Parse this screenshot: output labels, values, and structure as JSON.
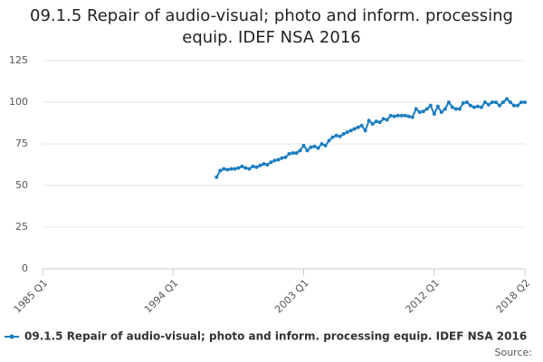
{
  "chart_data": {
    "type": "line",
    "title": "09.1.5 Repair of audio-visual; photo and inform. processing equip. IDEF NSA 2016",
    "categories": [
      "1985 Q1",
      null,
      null,
      null,
      null,
      null,
      null,
      null,
      null,
      null,
      null,
      null,
      null,
      null,
      null,
      null,
      null,
      null,
      null,
      null,
      null,
      null,
      null,
      null,
      null,
      null,
      null,
      null,
      null,
      null,
      null,
      null,
      null,
      null,
      null,
      null,
      "1994 Q1",
      null,
      null,
      null,
      null,
      null,
      null,
      null,
      null,
      null,
      null,
      null,
      null,
      null,
      null,
      null,
      null,
      null,
      null,
      null,
      null,
      null,
      null,
      null,
      null,
      null,
      null,
      null,
      null,
      null,
      null,
      null,
      null,
      null,
      null,
      null,
      "2003 Q1",
      null,
      null,
      null,
      null,
      null,
      null,
      null,
      null,
      null,
      null,
      null,
      null,
      null,
      null,
      null,
      null,
      null,
      null,
      null,
      null,
      null,
      null,
      null,
      null,
      null,
      null,
      null,
      null,
      null,
      null,
      null,
      null,
      null,
      null,
      null,
      "2012 Q1",
      null,
      null,
      null,
      null,
      null,
      null,
      null,
      null,
      null,
      null,
      null,
      null,
      null,
      null,
      null,
      null,
      null,
      null,
      null,
      null,
      null,
      null,
      null,
      null,
      "2018 Q2"
    ],
    "series": [
      {
        "name": "09.1.5 Repair of audio-visual; photo and inform. processing equip. IDEF NSA 2016",
        "color": "#1a7dc0",
        "values": [
          null,
          null,
          null,
          null,
          null,
          null,
          null,
          null,
          null,
          null,
          null,
          null,
          null,
          null,
          null,
          null,
          null,
          null,
          null,
          null,
          null,
          null,
          null,
          null,
          null,
          null,
          null,
          null,
          null,
          null,
          null,
          null,
          null,
          null,
          null,
          null,
          null,
          null,
          null,
          null,
          null,
          null,
          null,
          null,
          null,
          null,
          null,
          null,
          55,
          59,
          60,
          59.5,
          60,
          60,
          60.5,
          61.5,
          60.5,
          60,
          61.5,
          61,
          62,
          63,
          62.5,
          64,
          65,
          65.5,
          66.5,
          67,
          69,
          69.5,
          69.5,
          71,
          74,
          71,
          73,
          73.5,
          72.5,
          75,
          74,
          77,
          79,
          80,
          79.5,
          81,
          82,
          83,
          84,
          85,
          86,
          83,
          89,
          87,
          88.5,
          88,
          90,
          89.5,
          92,
          91.5,
          92,
          92,
          92,
          91.5,
          91,
          96,
          94,
          94.5,
          96,
          98,
          93,
          97.5,
          94,
          96,
          100,
          97,
          96,
          96,
          99.5,
          100,
          98,
          97,
          97.5,
          97,
          100,
          98.5,
          100,
          100,
          98,
          100,
          102,
          100,
          98,
          98,
          100,
          100
        ]
      }
    ],
    "ylim": [
      0,
      125
    ],
    "yticks": [
      0,
      25,
      50,
      75,
      100,
      125
    ],
    "grid": true,
    "source_label": "Source:"
  }
}
